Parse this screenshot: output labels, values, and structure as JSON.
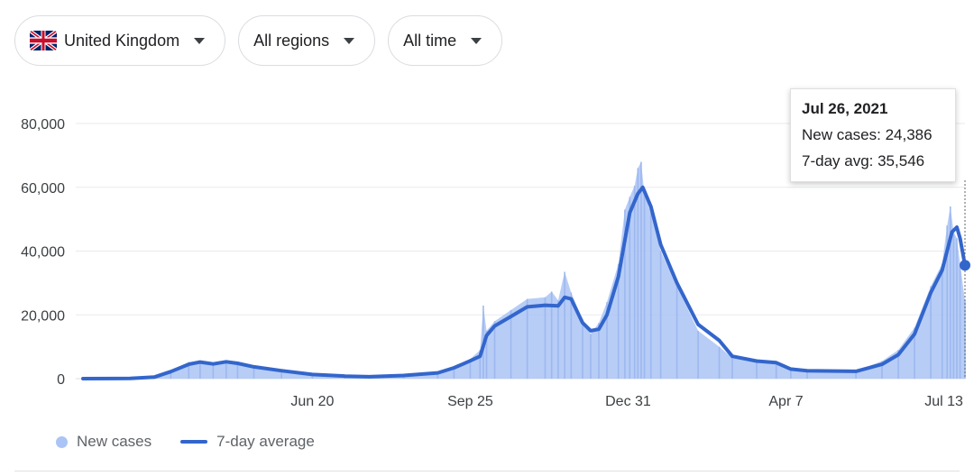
{
  "filters": {
    "country": {
      "label": "United Kingdom",
      "flag_icon": "uk-flag-icon"
    },
    "region": {
      "label": "All regions"
    },
    "time": {
      "label": "All time"
    }
  },
  "tooltip": {
    "date": "Jul 26, 2021",
    "new_cases_text": "New cases: 24,386",
    "avg_text": "7-day avg: 35,546"
  },
  "legend": {
    "new_cases": "New cases",
    "avg": "7-day average"
  },
  "colors": {
    "bars": "#aac4f5",
    "line": "#3366cc",
    "grid": "#e8eaed"
  },
  "chart_data": {
    "type": "area",
    "title": "",
    "xlabel": "",
    "ylabel": "",
    "ylim": [
      0,
      80000
    ],
    "y_ticks": [
      0,
      20000,
      40000,
      60000,
      80000
    ],
    "y_tick_labels": [
      "0",
      "20,000",
      "40,000",
      "60,000",
      "80,000"
    ],
    "x_range": [
      "2020-01-31",
      "2021-07-26"
    ],
    "x_ticks": [
      {
        "date": "2020-06-20",
        "label": "Jun 20"
      },
      {
        "date": "2020-09-25",
        "label": "Sep 25"
      },
      {
        "date": "2020-12-31",
        "label": "Dec 31"
      },
      {
        "date": "2021-04-07",
        "label": "Apr 7"
      },
      {
        "date": "2021-07-13",
        "label": "Jul 13"
      }
    ],
    "legend_position": "bottom-left",
    "grid": true,
    "series": [
      {
        "name": "7-day average",
        "kind": "line",
        "points": [
          [
            "2020-01-31",
            0
          ],
          [
            "2020-02-29",
            50
          ],
          [
            "2020-03-15",
            500
          ],
          [
            "2020-03-25",
            2200
          ],
          [
            "2020-04-05",
            4500
          ],
          [
            "2020-04-12",
            5200
          ],
          [
            "2020-04-20",
            4600
          ],
          [
            "2020-04-28",
            5300
          ],
          [
            "2020-05-05",
            4800
          ],
          [
            "2020-05-15",
            3700
          ],
          [
            "2020-06-01",
            2500
          ],
          [
            "2020-06-20",
            1300
          ],
          [
            "2020-07-10",
            800
          ],
          [
            "2020-07-25",
            600
          ],
          [
            "2020-08-15",
            1000
          ],
          [
            "2020-09-05",
            1800
          ],
          [
            "2020-09-15",
            3400
          ],
          [
            "2020-09-25",
            5600
          ],
          [
            "2020-10-01",
            7000
          ],
          [
            "2020-10-05",
            13500
          ],
          [
            "2020-10-10",
            16500
          ],
          [
            "2020-10-20",
            19500
          ],
          [
            "2020-10-30",
            22500
          ],
          [
            "2020-11-10",
            23000
          ],
          [
            "2020-11-18",
            22800
          ],
          [
            "2020-11-22",
            25500
          ],
          [
            "2020-11-26",
            25000
          ],
          [
            "2020-12-03",
            17500
          ],
          [
            "2020-12-08",
            15000
          ],
          [
            "2020-12-13",
            15500
          ],
          [
            "2020-12-18",
            20000
          ],
          [
            "2020-12-25",
            32000
          ],
          [
            "2021-01-01",
            52000
          ],
          [
            "2021-01-06",
            58000
          ],
          [
            "2021-01-09",
            60000
          ],
          [
            "2021-01-14",
            54000
          ],
          [
            "2021-01-20",
            42000
          ],
          [
            "2021-01-30",
            30000
          ],
          [
            "2021-02-12",
            17000
          ],
          [
            "2021-02-25",
            12000
          ],
          [
            "2021-03-05",
            7000
          ],
          [
            "2021-03-20",
            5500
          ],
          [
            "2021-04-01",
            5000
          ],
          [
            "2021-04-10",
            3000
          ],
          [
            "2021-04-20",
            2500
          ],
          [
            "2021-05-20",
            2300
          ],
          [
            "2021-06-05",
            4500
          ],
          [
            "2021-06-15",
            7500
          ],
          [
            "2021-06-25",
            14000
          ],
          [
            "2021-07-05",
            27000
          ],
          [
            "2021-07-12",
            34000
          ],
          [
            "2021-07-18",
            46000
          ],
          [
            "2021-07-21",
            47500
          ],
          [
            "2021-07-23",
            44000
          ],
          [
            "2021-07-26",
            35546
          ]
        ]
      },
      {
        "name": "New cases",
        "kind": "bars",
        "points": [
          [
            "2020-01-31",
            0
          ],
          [
            "2020-02-29",
            80
          ],
          [
            "2020-03-15",
            600
          ],
          [
            "2020-03-25",
            2600
          ],
          [
            "2020-04-05",
            5200
          ],
          [
            "2020-04-12",
            5600
          ],
          [
            "2020-04-20",
            4900
          ],
          [
            "2020-04-28",
            5700
          ],
          [
            "2020-05-05",
            5100
          ],
          [
            "2020-05-15",
            4000
          ],
          [
            "2020-06-01",
            2700
          ],
          [
            "2020-06-20",
            1400
          ],
          [
            "2020-07-10",
            900
          ],
          [
            "2020-07-25",
            700
          ],
          [
            "2020-08-15",
            1100
          ],
          [
            "2020-09-05",
            2000
          ],
          [
            "2020-09-15",
            3800
          ],
          [
            "2020-09-25",
            6200
          ],
          [
            "2020-10-01",
            9000
          ],
          [
            "2020-10-03",
            22900
          ],
          [
            "2020-10-05",
            15000
          ],
          [
            "2020-10-10",
            18000
          ],
          [
            "2020-10-20",
            21500
          ],
          [
            "2020-10-30",
            25000
          ],
          [
            "2020-11-10",
            25500
          ],
          [
            "2020-11-14",
            27300
          ],
          [
            "2020-11-18",
            24500
          ],
          [
            "2020-11-22",
            33500
          ],
          [
            "2020-11-26",
            27000
          ],
          [
            "2020-12-03",
            18500
          ],
          [
            "2020-12-08",
            14000
          ],
          [
            "2020-12-13",
            17500
          ],
          [
            "2020-12-18",
            24000
          ],
          [
            "2020-12-25",
            36000
          ],
          [
            "2020-12-29",
            53000
          ],
          [
            "2021-01-01",
            57000
          ],
          [
            "2021-01-04",
            60500
          ],
          [
            "2021-01-06",
            66000
          ],
          [
            "2021-01-08",
            68000
          ],
          [
            "2021-01-10",
            58000
          ],
          [
            "2021-01-14",
            52000
          ],
          [
            "2021-01-20",
            40000
          ],
          [
            "2021-01-30",
            29000
          ],
          [
            "2021-02-12",
            15000
          ],
          [
            "2021-02-25",
            10000
          ],
          [
            "2021-03-05",
            6500
          ],
          [
            "2021-03-20",
            5200
          ],
          [
            "2021-04-01",
            4500
          ],
          [
            "2021-04-10",
            2600
          ],
          [
            "2021-04-20",
            2400
          ],
          [
            "2021-05-20",
            2400
          ],
          [
            "2021-06-05",
            5500
          ],
          [
            "2021-06-15",
            9000
          ],
          [
            "2021-06-25",
            16000
          ],
          [
            "2021-07-05",
            29000
          ],
          [
            "2021-07-12",
            36000
          ],
          [
            "2021-07-15",
            48000
          ],
          [
            "2021-07-17",
            54000
          ],
          [
            "2021-07-19",
            46000
          ],
          [
            "2021-07-21",
            44000
          ],
          [
            "2021-07-23",
            36000
          ],
          [
            "2021-07-26",
            24386
          ]
        ]
      }
    ]
  }
}
